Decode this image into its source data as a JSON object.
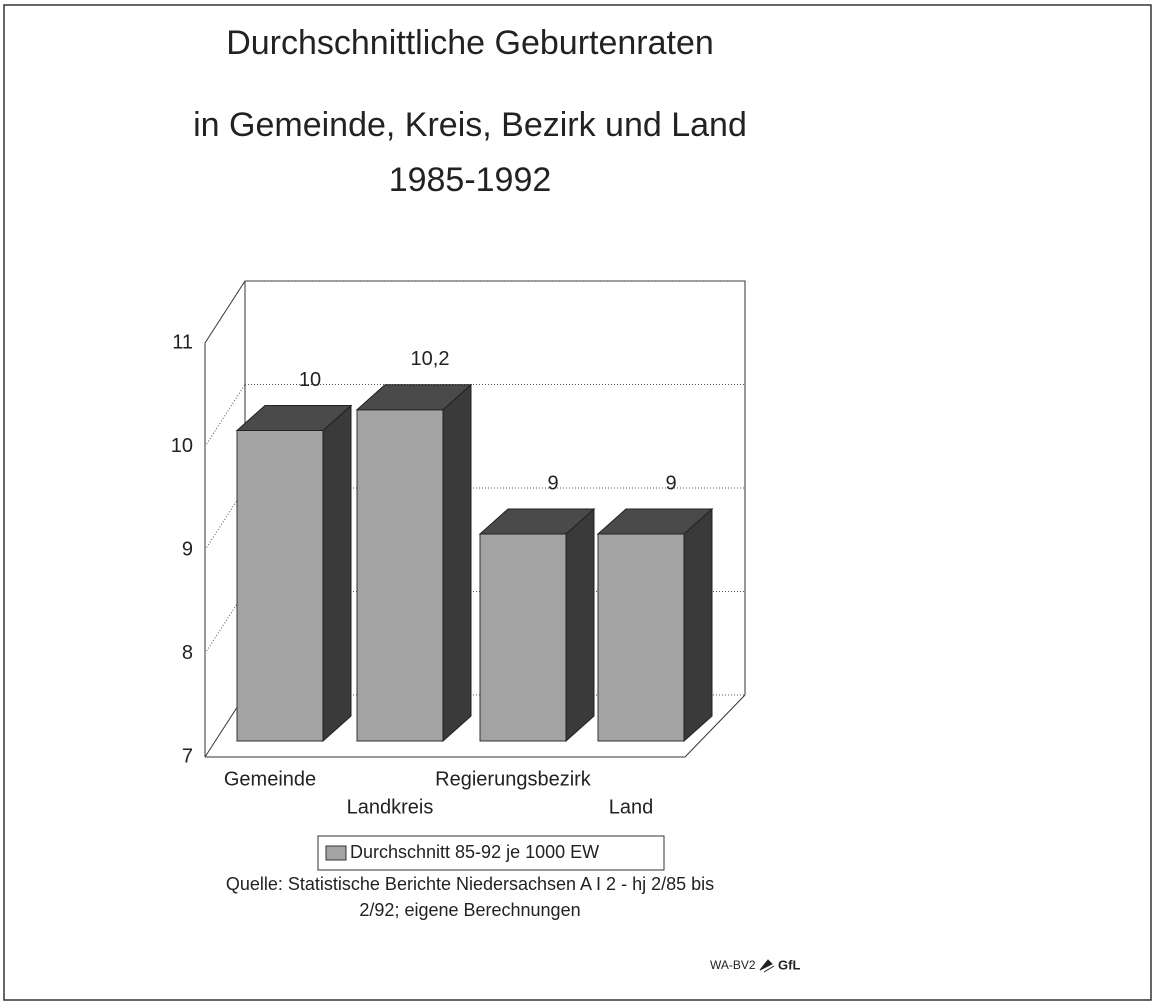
{
  "chart_data": {
    "type": "bar3d",
    "title": "Durchschnittliche Geburtenraten",
    "subtitle": [
      "in Gemeinde, Kreis, Bezirk und Land",
      "1985-1992"
    ],
    "categories": [
      "Gemeinde",
      "Landkreis",
      "Regierungsbezirk",
      "Land"
    ],
    "series": [
      {
        "name": "Durchschnitt 85-92 je 1000 EW",
        "color": "#a3a3a3",
        "values": [
          10,
          10.2,
          9,
          9
        ],
        "value_labels": [
          "10",
          "10,2",
          "9",
          "9"
        ]
      }
    ],
    "ylim": [
      7,
      11
    ],
    "yticks": [
      7,
      8,
      9,
      10,
      11
    ],
    "grid": true,
    "legend": "bottom",
    "source": [
      "Quelle: Statistische Berichte Niedersachsen A I 2 - hj 2/85 bis",
      "2/92; eigene Berechnungen"
    ],
    "footer": [
      "WA-BV2",
      "GfL"
    ]
  }
}
